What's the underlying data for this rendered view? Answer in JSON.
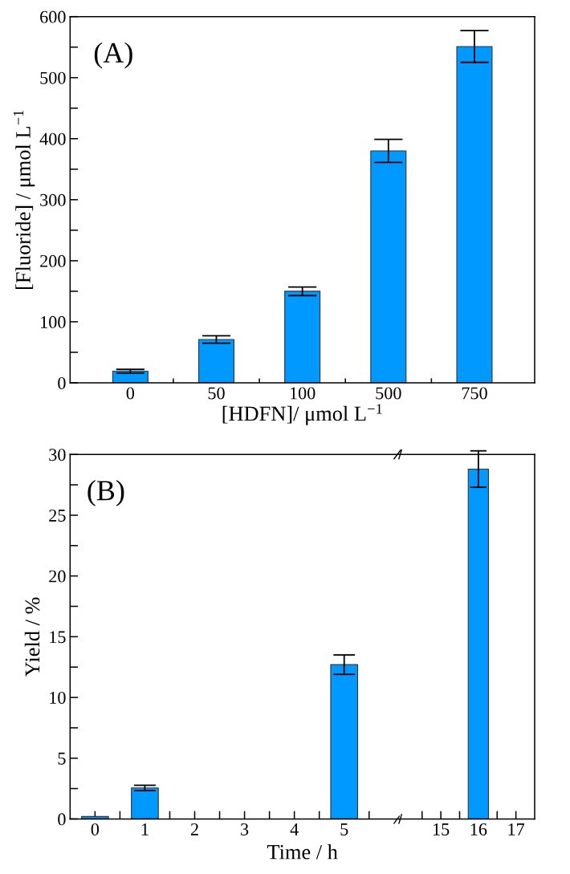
{
  "chart_data": [
    {
      "type": "bar",
      "title": "(A)",
      "xlabel": "[HDFN]/ μmol L$^{−1}$",
      "ylabel": "[Fluoride] / μmol L$^{−1}$",
      "categories": [
        "0",
        "50",
        "100",
        "500",
        "750"
      ],
      "values": [
        19,
        71,
        150,
        380,
        551
      ],
      "errors": [
        3,
        6,
        7,
        19,
        26
      ],
      "color": "#0099ff",
      "ylim": [
        0,
        600
      ],
      "yticks": [
        0,
        {
          "value": 50,
          "label": null
        },
        100,
        {
          "value": 150,
          "label": null
        },
        200,
        {
          "value": 250,
          "label": null
        },
        300,
        {
          "value": 350,
          "label": null
        },
        400,
        {
          "value": 450,
          "label": null
        },
        500,
        {
          "value": 550,
          "label": null
        },
        600
      ],
      "grid": false,
      "legend": false
    },
    {
      "type": "bar",
      "title": "(B)",
      "xlabel": "Time / h",
      "ylabel": "Yield / %",
      "x": [
        0,
        1,
        5
      ],
      "values": [
        0.2,
        2.55,
        12.7
      ],
      "errors": [
        null,
        0.22,
        0.8
      ],
      "color": "#0099ff",
      "xlim": [
        -0.5,
        6.1
      ],
      "xticks": [
        0,
        {
          "value": 0.5,
          "label": null
        },
        1,
        {
          "value": 1.5,
          "label": null
        },
        2,
        {
          "value": 2.5,
          "label": null
        },
        3,
        {
          "value": 3.5,
          "label": null
        },
        4,
        {
          "value": 4.5,
          "label": null
        },
        5,
        {
          "value": 5.5,
          "label": null
        }
      ],
      "ylim": [
        0,
        30
      ],
      "yticks": [
        0,
        {
          "value": 2.5,
          "label": null
        },
        5,
        {
          "value": 7.5,
          "label": null
        },
        10,
        {
          "value": 12.5,
          "label": null
        },
        15,
        {
          "value": 17.5,
          "label": null
        },
        20,
        {
          "value": 22.5,
          "label": null
        },
        25,
        {
          "value": 27.5,
          "label": null
        },
        30
      ],
      "grid": false,
      "legend": false
    },
    {
      "type": "bar",
      "x": [
        16
      ],
      "values": [
        28.8
      ],
      "errors": [
        1.5
      ],
      "color": "#0099ff",
      "xlim": [
        13.9,
        17.5
      ],
      "xticks": [
        {
          "value": 14.5,
          "label": null
        },
        15,
        {
          "value": 15.5,
          "label": null
        },
        16,
        {
          "value": 16.5,
          "label": null
        },
        17
      ],
      "ylim": [
        0,
        30
      ],
      "yticks": [
        0,
        5,
        10,
        15,
        20,
        25,
        30
      ],
      "tick_labels": "x",
      "grid": false,
      "legend": false
    }
  ]
}
